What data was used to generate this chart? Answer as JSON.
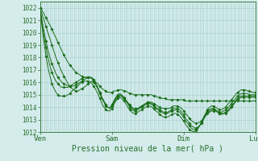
{
  "title": "",
  "xlabel": "Pression niveau de la mer( hPa )",
  "ylabel": "",
  "bg_color": "#d4ecec",
  "grid_color": "#a8cccc",
  "line_color": "#1a6e1a",
  "marker_color": "#1a6e1a",
  "ylim": [
    1012,
    1022.5
  ],
  "yticks": [
    1012,
    1013,
    1014,
    1015,
    1016,
    1017,
    1018,
    1019,
    1020,
    1021,
    1022
  ],
  "xtick_labels": [
    "Ven",
    "Sam",
    "Dim",
    "Lun"
  ],
  "xtick_positions": [
    0,
    36,
    72,
    108
  ],
  "total_points": 109,
  "series": [
    [
      1022.0,
      1021.8,
      1021.5,
      1021.2,
      1020.9,
      1020.6,
      1020.3,
      1019.9,
      1019.6,
      1019.2,
      1018.9,
      1018.5,
      1018.2,
      1017.9,
      1017.6,
      1017.4,
      1017.2,
      1017.0,
      1016.8,
      1016.7,
      1016.6,
      1016.5,
      1016.4,
      1016.4,
      1016.4,
      1016.4,
      1016.3,
      1016.2,
      1016.0,
      1015.9,
      1015.7,
      1015.5,
      1015.4,
      1015.3,
      1015.2,
      1015.2,
      1015.2,
      1015.3,
      1015.3,
      1015.4,
      1015.4,
      1015.4,
      1015.3,
      1015.3,
      1015.2,
      1015.1,
      1015.1,
      1015.0,
      1015.0,
      1015.0,
      1015.0,
      1015.0,
      1015.0,
      1015.0,
      1015.0,
      1015.0,
      1015.0,
      1014.9,
      1014.9,
      1014.8,
      1014.8,
      1014.7,
      1014.7,
      1014.7,
      1014.6,
      1014.6,
      1014.6,
      1014.6,
      1014.6,
      1014.6,
      1014.6,
      1014.6,
      1014.6,
      1014.5,
      1014.5,
      1014.5,
      1014.5,
      1014.5,
      1014.5,
      1014.5,
      1014.5,
      1014.5,
      1014.5,
      1014.5,
      1014.5,
      1014.5,
      1014.5,
      1014.5,
      1014.5,
      1014.5,
      1014.5,
      1014.5,
      1014.5,
      1014.5,
      1014.5,
      1014.5,
      1014.5,
      1014.5,
      1014.5,
      1014.5,
      1014.5,
      1014.5,
      1014.5,
      1014.5,
      1014.5,
      1014.5,
      1014.5,
      1014.5,
      1014.5
    ],
    [
      1022.0,
      1021.5,
      1021.0,
      1020.5,
      1020.0,
      1019.5,
      1019.0,
      1018.5,
      1018.0,
      1017.6,
      1017.2,
      1016.8,
      1016.5,
      1016.2,
      1015.9,
      1015.7,
      1015.5,
      1015.4,
      1015.3,
      1015.3,
      1015.4,
      1015.5,
      1015.6,
      1015.7,
      1015.9,
      1016.0,
      1016.1,
      1016.0,
      1015.8,
      1015.5,
      1015.2,
      1014.8,
      1014.5,
      1014.2,
      1014.0,
      1013.9,
      1014.2,
      1014.5,
      1014.8,
      1015.0,
      1015.1,
      1015.0,
      1014.8,
      1014.6,
      1014.4,
      1014.2,
      1014.0,
      1013.9,
      1013.9,
      1013.9,
      1014.0,
      1014.1,
      1014.2,
      1014.3,
      1014.4,
      1014.4,
      1014.4,
      1014.3,
      1014.2,
      1014.1,
      1014.0,
      1013.9,
      1013.9,
      1013.9,
      1013.9,
      1013.9,
      1014.0,
      1014.1,
      1014.1,
      1014.1,
      1014.0,
      1013.9,
      1013.7,
      1013.5,
      1013.3,
      1013.1,
      1012.9,
      1012.8,
      1012.7,
      1012.7,
      1012.8,
      1012.9,
      1013.1,
      1013.3,
      1013.5,
      1013.6,
      1013.7,
      1013.7,
      1013.7,
      1013.6,
      1013.5,
      1013.5,
      1013.5,
      1013.5,
      1013.6,
      1013.8,
      1014.0,
      1014.2,
      1014.4,
      1014.6,
      1014.7,
      1014.8,
      1014.8,
      1014.8,
      1014.8,
      1014.8,
      1014.8,
      1014.8,
      1014.8
    ],
    [
      1022.0,
      1021.0,
      1020.1,
      1019.3,
      1018.6,
      1018.0,
      1017.5,
      1017.1,
      1016.7,
      1016.4,
      1016.2,
      1016.0,
      1015.9,
      1015.8,
      1015.7,
      1015.7,
      1015.7,
      1015.7,
      1015.8,
      1015.9,
      1016.0,
      1016.1,
      1016.2,
      1016.3,
      1016.4,
      1016.4,
      1016.4,
      1016.2,
      1015.9,
      1015.6,
      1015.2,
      1014.8,
      1014.5,
      1014.2,
      1014.0,
      1013.9,
      1014.1,
      1014.3,
      1014.6,
      1014.8,
      1014.9,
      1014.9,
      1014.7,
      1014.5,
      1014.3,
      1014.1,
      1013.9,
      1013.8,
      1013.8,
      1013.9,
      1014.0,
      1014.1,
      1014.2,
      1014.3,
      1014.4,
      1014.4,
      1014.3,
      1014.2,
      1014.0,
      1013.9,
      1013.8,
      1013.7,
      1013.6,
      1013.6,
      1013.6,
      1013.7,
      1013.8,
      1013.9,
      1013.9,
      1013.9,
      1013.8,
      1013.6,
      1013.4,
      1013.1,
      1012.9,
      1012.7,
      1012.5,
      1012.4,
      1012.3,
      1012.4,
      1012.5,
      1012.7,
      1013.0,
      1013.3,
      1013.6,
      1013.7,
      1013.8,
      1013.8,
      1013.7,
      1013.6,
      1013.5,
      1013.4,
      1013.5,
      1013.6,
      1013.7,
      1013.9,
      1014.1,
      1014.3,
      1014.5,
      1014.7,
      1014.8,
      1014.9,
      1014.9,
      1014.9,
      1014.9,
      1014.9,
      1014.9,
      1014.9,
      1014.9
    ],
    [
      1022.0,
      1020.8,
      1019.7,
      1018.8,
      1018.0,
      1017.3,
      1016.8,
      1016.4,
      1016.1,
      1015.9,
      1015.7,
      1015.6,
      1015.6,
      1015.6,
      1015.6,
      1015.7,
      1015.8,
      1015.9,
      1016.0,
      1016.1,
      1016.2,
      1016.3,
      1016.4,
      1016.4,
      1016.4,
      1016.4,
      1016.3,
      1016.1,
      1015.8,
      1015.5,
      1015.1,
      1014.7,
      1014.4,
      1014.1,
      1014.0,
      1013.9,
      1014.1,
      1014.4,
      1014.7,
      1014.9,
      1015.0,
      1014.9,
      1014.7,
      1014.5,
      1014.3,
      1014.0,
      1013.8,
      1013.7,
      1013.7,
      1013.8,
      1013.9,
      1014.0,
      1014.1,
      1014.2,
      1014.3,
      1014.3,
      1014.2,
      1014.1,
      1013.9,
      1013.8,
      1013.7,
      1013.6,
      1013.5,
      1013.5,
      1013.5,
      1013.6,
      1013.7,
      1013.7,
      1013.8,
      1013.7,
      1013.6,
      1013.4,
      1013.2,
      1012.9,
      1012.7,
      1012.5,
      1012.3,
      1012.2,
      1012.2,
      1012.3,
      1012.5,
      1012.8,
      1013.1,
      1013.4,
      1013.7,
      1013.8,
      1013.9,
      1013.9,
      1013.8,
      1013.7,
      1013.6,
      1013.6,
      1013.7,
      1013.8,
      1013.9,
      1014.1,
      1014.3,
      1014.5,
      1014.7,
      1014.9,
      1015.0,
      1015.1,
      1015.1,
      1015.1,
      1015.1,
      1015.0,
      1015.0,
      1015.0,
      1015.0
    ],
    [
      1022.0,
      1020.5,
      1019.2,
      1018.1,
      1017.2,
      1016.5,
      1015.9,
      1015.5,
      1015.2,
      1015.0,
      1014.9,
      1014.9,
      1014.9,
      1014.9,
      1015.0,
      1015.1,
      1015.3,
      1015.4,
      1015.6,
      1015.7,
      1015.9,
      1016.0,
      1016.1,
      1016.1,
      1016.1,
      1016.0,
      1015.9,
      1015.7,
      1015.4,
      1015.1,
      1014.7,
      1014.3,
      1014.0,
      1013.8,
      1013.7,
      1013.7,
      1013.9,
      1014.2,
      1014.5,
      1014.7,
      1014.8,
      1014.7,
      1014.5,
      1014.3,
      1014.0,
      1013.8,
      1013.6,
      1013.5,
      1013.5,
      1013.6,
      1013.7,
      1013.8,
      1013.9,
      1014.0,
      1014.1,
      1014.1,
      1014.0,
      1013.9,
      1013.7,
      1013.6,
      1013.4,
      1013.3,
      1013.2,
      1013.2,
      1013.2,
      1013.3,
      1013.4,
      1013.5,
      1013.5,
      1013.4,
      1013.3,
      1013.1,
      1012.9,
      1012.6,
      1012.4,
      1012.2,
      1012.1,
      1012.0,
      1012.1,
      1012.2,
      1012.5,
      1012.8,
      1013.2,
      1013.5,
      1013.8,
      1014.0,
      1014.1,
      1014.1,
      1014.0,
      1013.9,
      1013.8,
      1013.8,
      1013.9,
      1014.0,
      1014.2,
      1014.4,
      1014.6,
      1014.8,
      1015.0,
      1015.2,
      1015.3,
      1015.4,
      1015.4,
      1015.4,
      1015.3,
      1015.3,
      1015.2,
      1015.2,
      1015.2
    ]
  ]
}
